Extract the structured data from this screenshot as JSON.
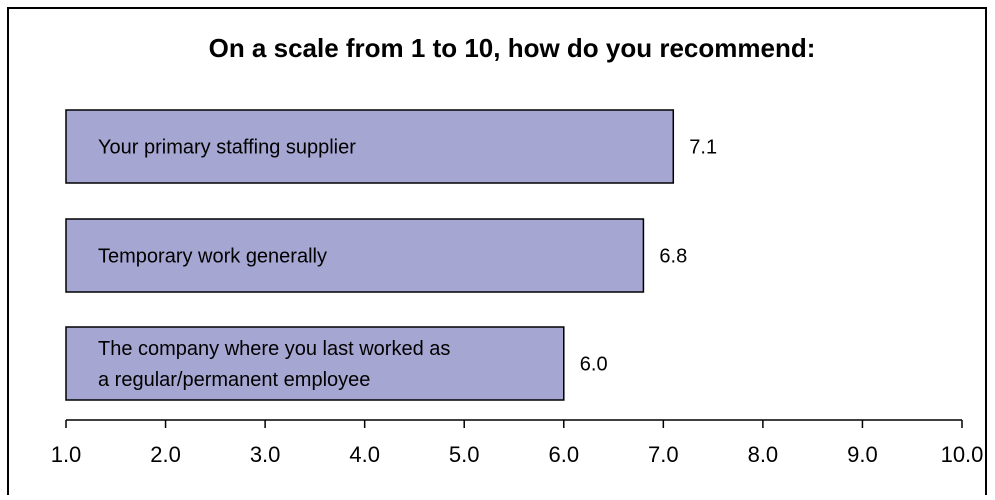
{
  "colors": {
    "bar_fill": "#a6a6d2",
    "bar_stroke": "#000000",
    "frame_stroke": "#000000",
    "background": "#ffffff"
  },
  "chart_data": {
    "type": "bar",
    "orientation": "horizontal",
    "title": "On a scale from 1 to 10, how do you recommend:",
    "categories": [
      [
        "Your primary staffing supplier"
      ],
      [
        "Temporary work generally"
      ],
      [
        "The company where you last worked as",
        "a regular/permanent employee"
      ]
    ],
    "values": [
      7.1,
      6.8,
      6.0
    ],
    "value_labels": [
      "7.1",
      "6.8",
      "6.0"
    ],
    "xlim": [
      1.0,
      10.0
    ],
    "xticks": [
      "1.0",
      "2.0",
      "3.0",
      "4.0",
      "5.0",
      "6.0",
      "7.0",
      "8.0",
      "9.0",
      "10.0"
    ],
    "xlabel": "",
    "ylabel": "",
    "legend": "none",
    "grid": false
  }
}
